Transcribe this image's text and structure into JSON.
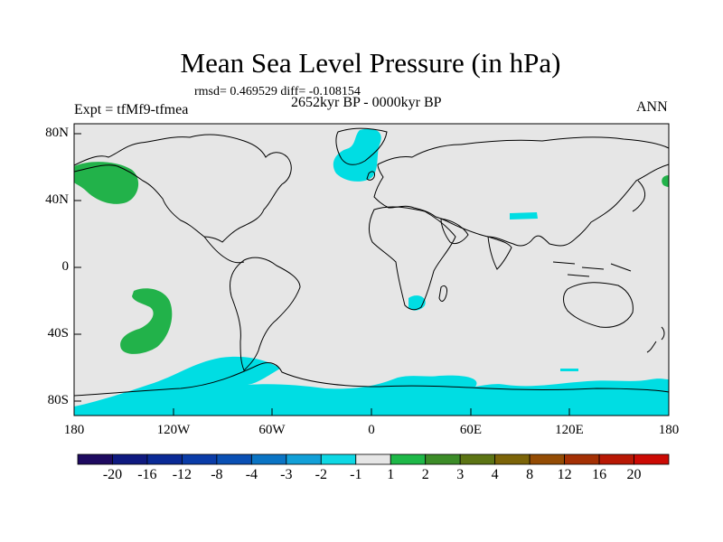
{
  "title": "Mean Sea Level Pressure (in hPa)",
  "stats": "rmsd= 0.469529 diff= -0.108154",
  "period": "2652kyr BP - 0000kyr BP",
  "experiment": "Expt = tfMf9-tfmea",
  "season": "ANN",
  "lat_ticks": [
    "80N",
    "40N",
    "0",
    "40S",
    "80S"
  ],
  "lon_ticks": [
    "180",
    "120W",
    "60W",
    "0",
    "60E",
    "120E",
    "180"
  ],
  "colorbar": {
    "colors": [
      "#1e0a60",
      "#0f1a80",
      "#0a2a96",
      "#0a3ca8",
      "#0a50b4",
      "#0a74c4",
      "#12a0d8",
      "#0ed8e4",
      "#e6e6e6",
      "#1eb848",
      "#3c8c28",
      "#5c7414",
      "#7c6408",
      "#944c04",
      "#a43004",
      "#b81804",
      "#cc0a04"
    ],
    "labels": [
      "-20",
      "-16",
      "-12",
      "-8",
      "-4",
      "-3",
      "-2",
      "-1",
      "1",
      "2",
      "3",
      "4",
      "8",
      "12",
      "16",
      "20"
    ]
  },
  "colors": {
    "background": "#e6e6e6",
    "negative": "#00dde3",
    "positive": "#22b24a"
  }
}
